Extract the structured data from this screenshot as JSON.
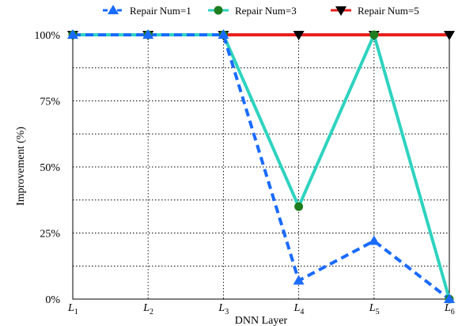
{
  "chart_data": {
    "type": "line",
    "xlabel": "DNN Layer",
    "ylabel": "Improvement (%)",
    "ylim": [
      0,
      100
    ],
    "yticks": [
      "0%",
      "25%",
      "50%",
      "75%",
      "100%"
    ],
    "ytick_values": [
      0,
      25,
      50,
      75,
      100
    ],
    "categories": [
      {
        "main": "L",
        "sub": "1"
      },
      {
        "main": "L",
        "sub": "2"
      },
      {
        "main": "L",
        "sub": "3"
      },
      {
        "main": "L",
        "sub": "4"
      },
      {
        "main": "L",
        "sub": "5"
      },
      {
        "main": "L",
        "sub": "6"
      }
    ],
    "grid": true,
    "legend_placement": "top",
    "series": [
      {
        "name": "Repair Num=1",
        "values": [
          100,
          100,
          100,
          7,
          22,
          0
        ],
        "color": "#1a6bff",
        "line_style": "dashed",
        "marker": "triangle-up"
      },
      {
        "name": "Repair Num=3",
        "values": [
          100,
          100,
          100,
          35,
          100,
          0
        ],
        "color": "#2ed3bf",
        "marker_color": "#1e7d1e",
        "line_style": "solid",
        "marker": "circle"
      },
      {
        "name": "Repair Num=5",
        "values": [
          100,
          100,
          100,
          100,
          100,
          100
        ],
        "color": "#e8201c",
        "marker_color": "#000000",
        "line_style": "solid",
        "marker": "triangle-down"
      }
    ]
  }
}
